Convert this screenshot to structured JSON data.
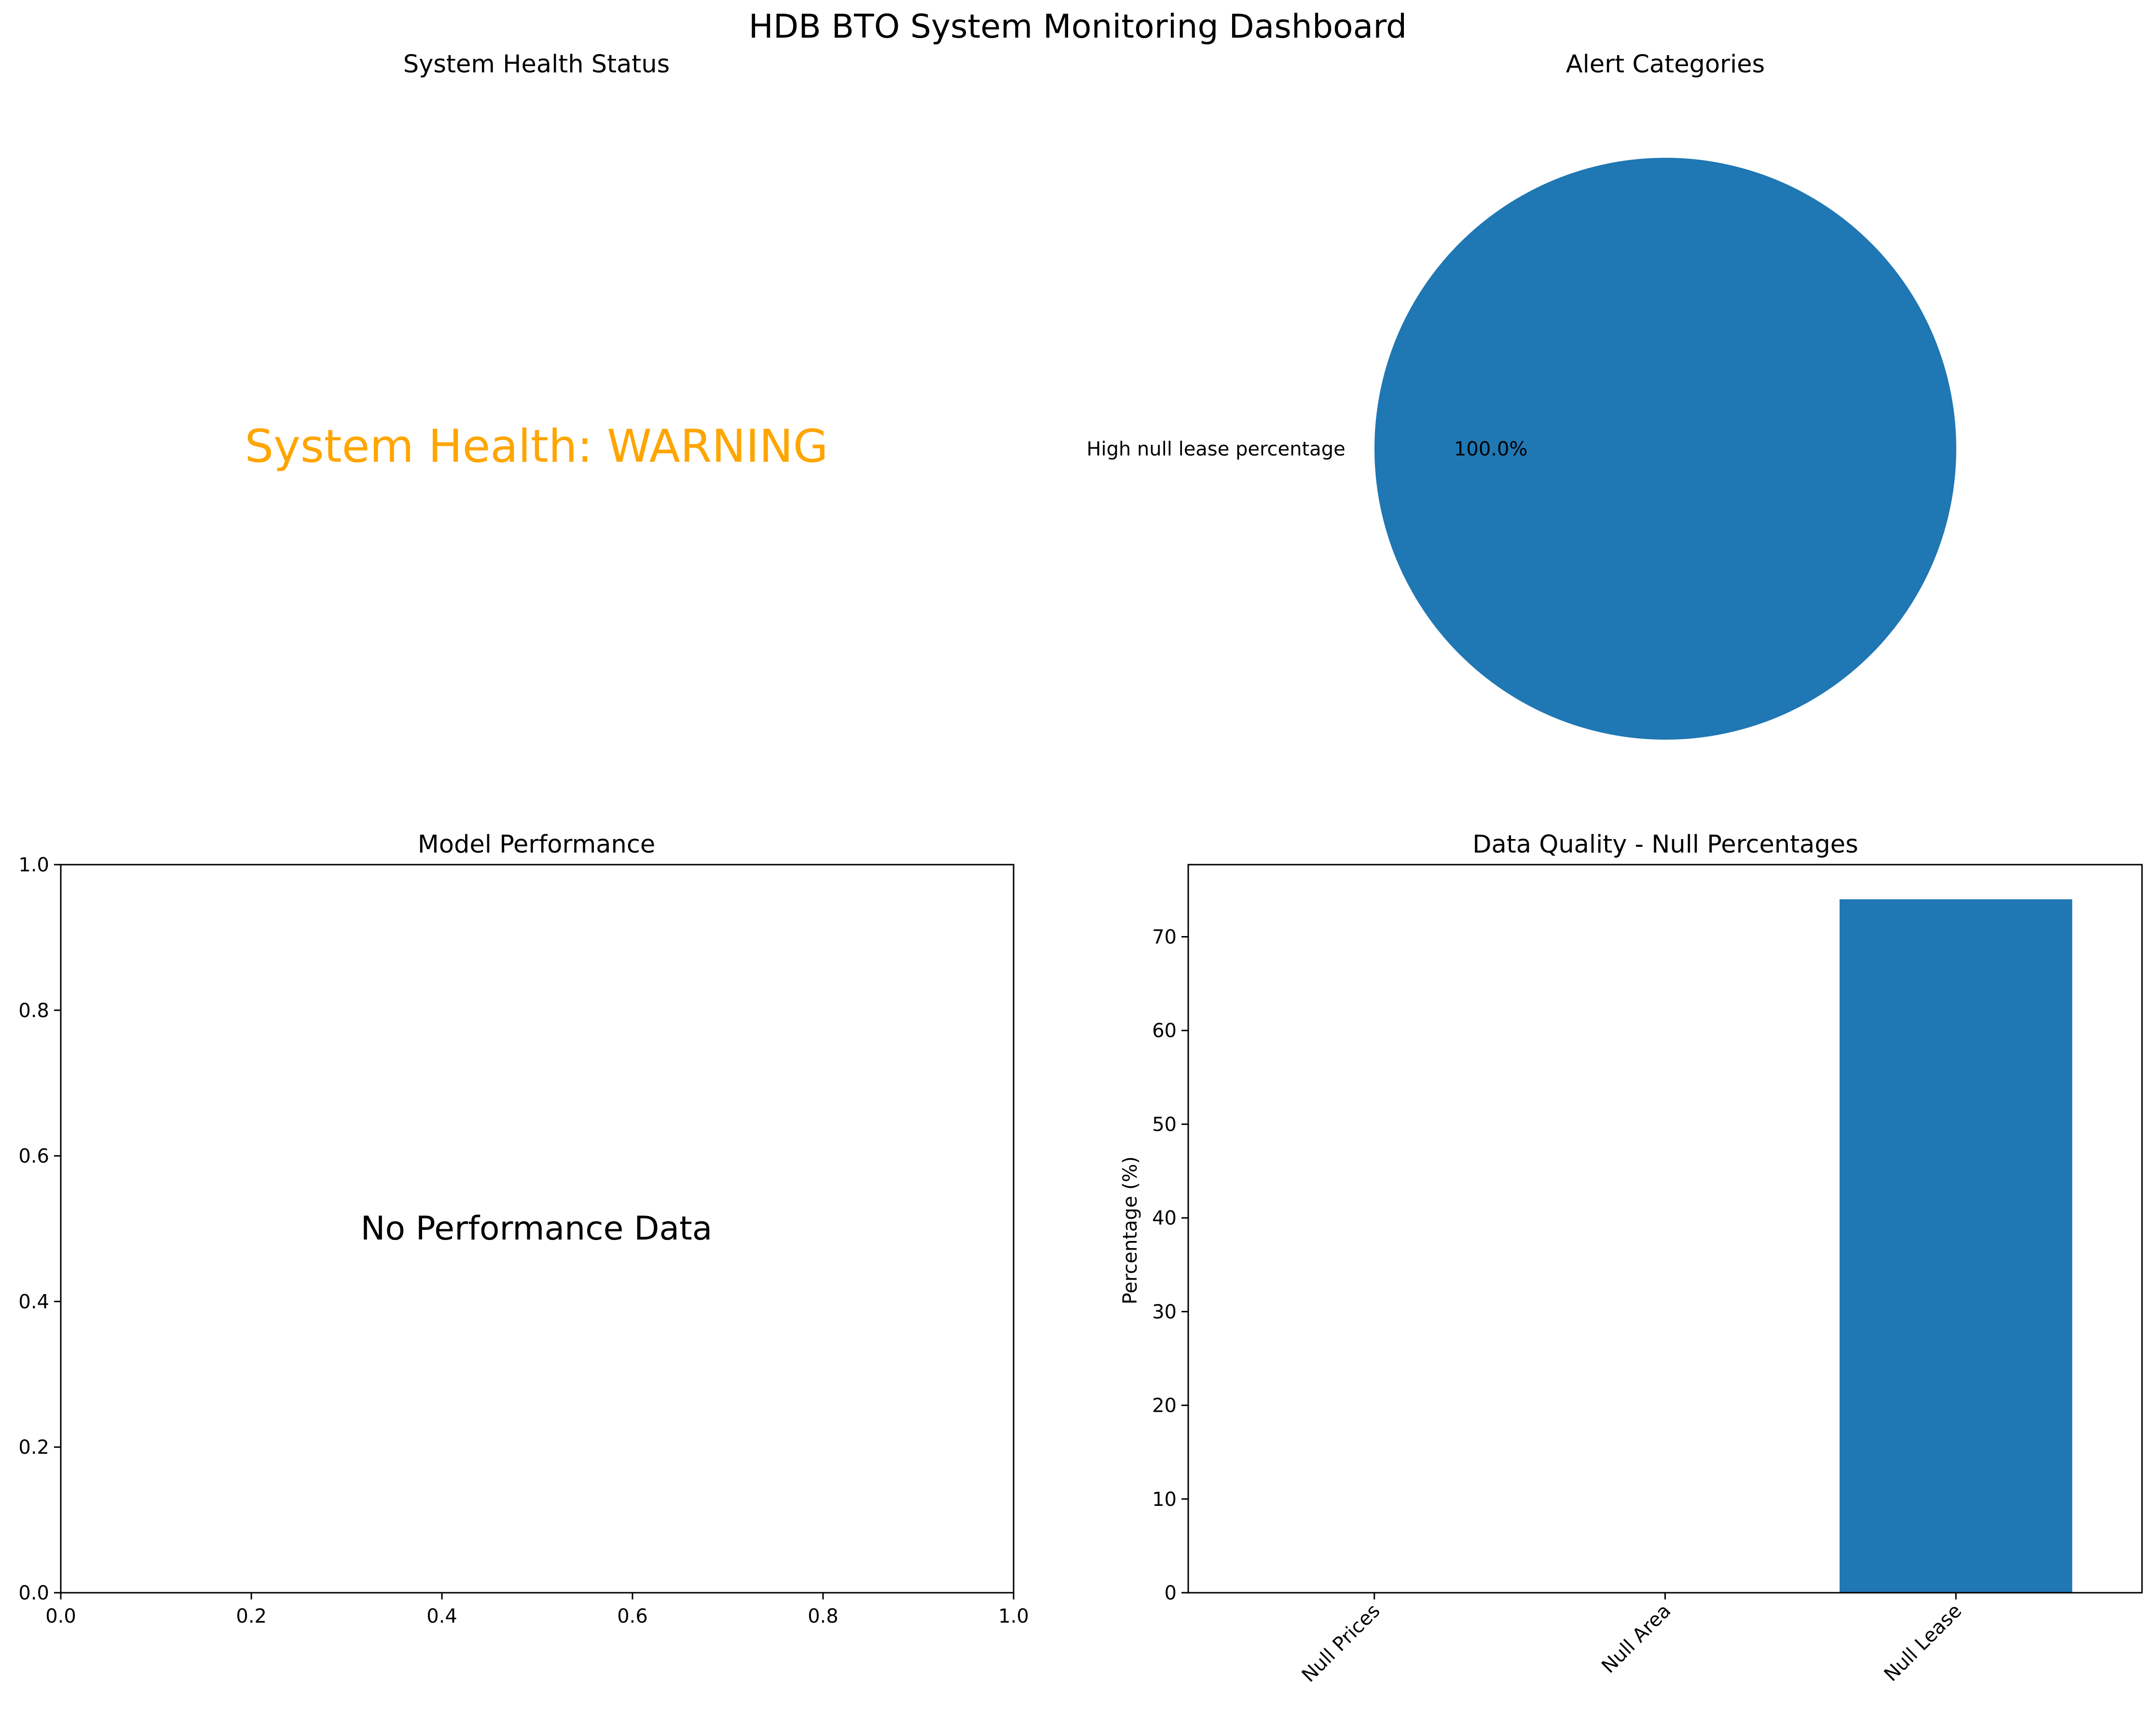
{
  "figure": {
    "title": "HDB BTO System Monitoring Dashboard"
  },
  "colors": {
    "status_warning": "#FFA500",
    "bar": "#1F77B4",
    "pie": "#1F77B4",
    "axis": "#000000"
  },
  "panels": {
    "health": {
      "title": "System Health Status",
      "status_text": "System Health: WARNING",
      "status_color": "#FFA500"
    },
    "model": {
      "title": "Model Performance",
      "annotation": "No Performance Data"
    }
  },
  "chart_data": [
    {
      "type": "pie",
      "title": "Alert Categories",
      "labels": [
        "High null lease percentage"
      ],
      "values": [
        100.0
      ],
      "autopct_labels": [
        "100.0%"
      ],
      "colors": [
        "#1F77B4"
      ]
    },
    {
      "type": "line",
      "title": "Model Performance",
      "series": [],
      "xlim": [
        0.0,
        1.0
      ],
      "ylim": [
        0.0,
        1.0
      ],
      "xticks": [
        0.0,
        0.2,
        0.4,
        0.6,
        0.8,
        1.0
      ],
      "yticks": [
        0.0,
        0.2,
        0.4,
        0.6,
        0.8,
        1.0
      ],
      "xtick_labels": [
        "0.0",
        "0.2",
        "0.4",
        "0.6",
        "0.8",
        "1.0"
      ],
      "ytick_labels": [
        "0.0",
        "0.2",
        "0.4",
        "0.6",
        "0.8",
        "1.0"
      ],
      "annotation": "No Performance Data"
    },
    {
      "type": "bar",
      "title": "Data Quality - Null Percentages",
      "categories": [
        "Null Prices",
        "Null Area",
        "Null Lease"
      ],
      "values": [
        0,
        0,
        74
      ],
      "ylabel": "Percentage (%)",
      "ylim": [
        0,
        77.7
      ],
      "yticks": [
        0,
        10,
        20,
        30,
        40,
        50,
        60,
        70
      ],
      "xtick_rotation": 45,
      "color": "#1F77B4"
    }
  ]
}
